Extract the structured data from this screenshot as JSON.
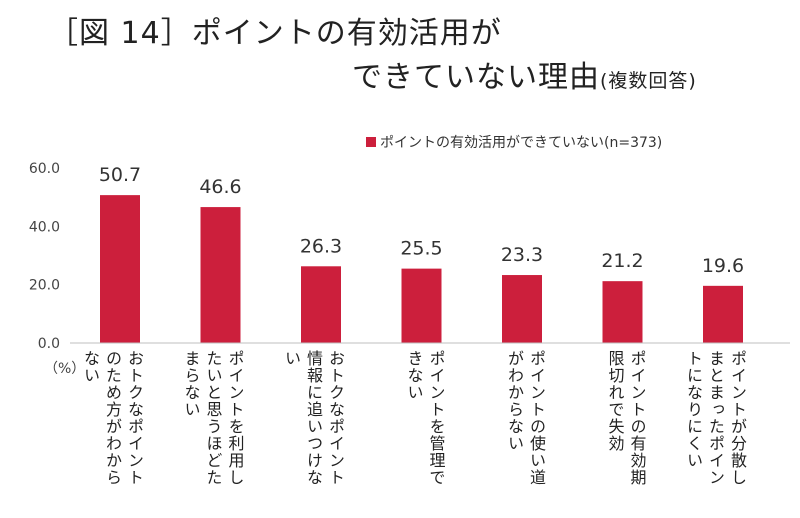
{
  "title": {
    "line1": "［図 14］ポイントの有効活用が",
    "line2": "できていない理由",
    "subtitle": "(複数回答)"
  },
  "chart_data": {
    "type": "bar",
    "unit_label": "（%）",
    "categories": [
      "おトクなポイントのため方がわからない",
      "ポイントを利用したいと思うほどたまらない",
      "おトクなポイント情報に追いつけない",
      "ポイントを管理できない",
      "ポイントの使い道がわからない",
      "ポイントの有効期限切れで失効",
      "ポイントが分散しまとまったポイントになりにくい"
    ],
    "series": [
      {
        "name": "ポイントの有効活用ができていない(n=373)",
        "values": [
          50.7,
          46.6,
          26.3,
          25.5,
          23.3,
          21.2,
          19.6
        ],
        "color": "#cc1f3c"
      }
    ],
    "yticks": [
      "60.0",
      "40.0",
      "20.0",
      "0.0"
    ],
    "ylim": [
      0,
      60
    ],
    "grid": false,
    "legend_position": "top-right"
  }
}
